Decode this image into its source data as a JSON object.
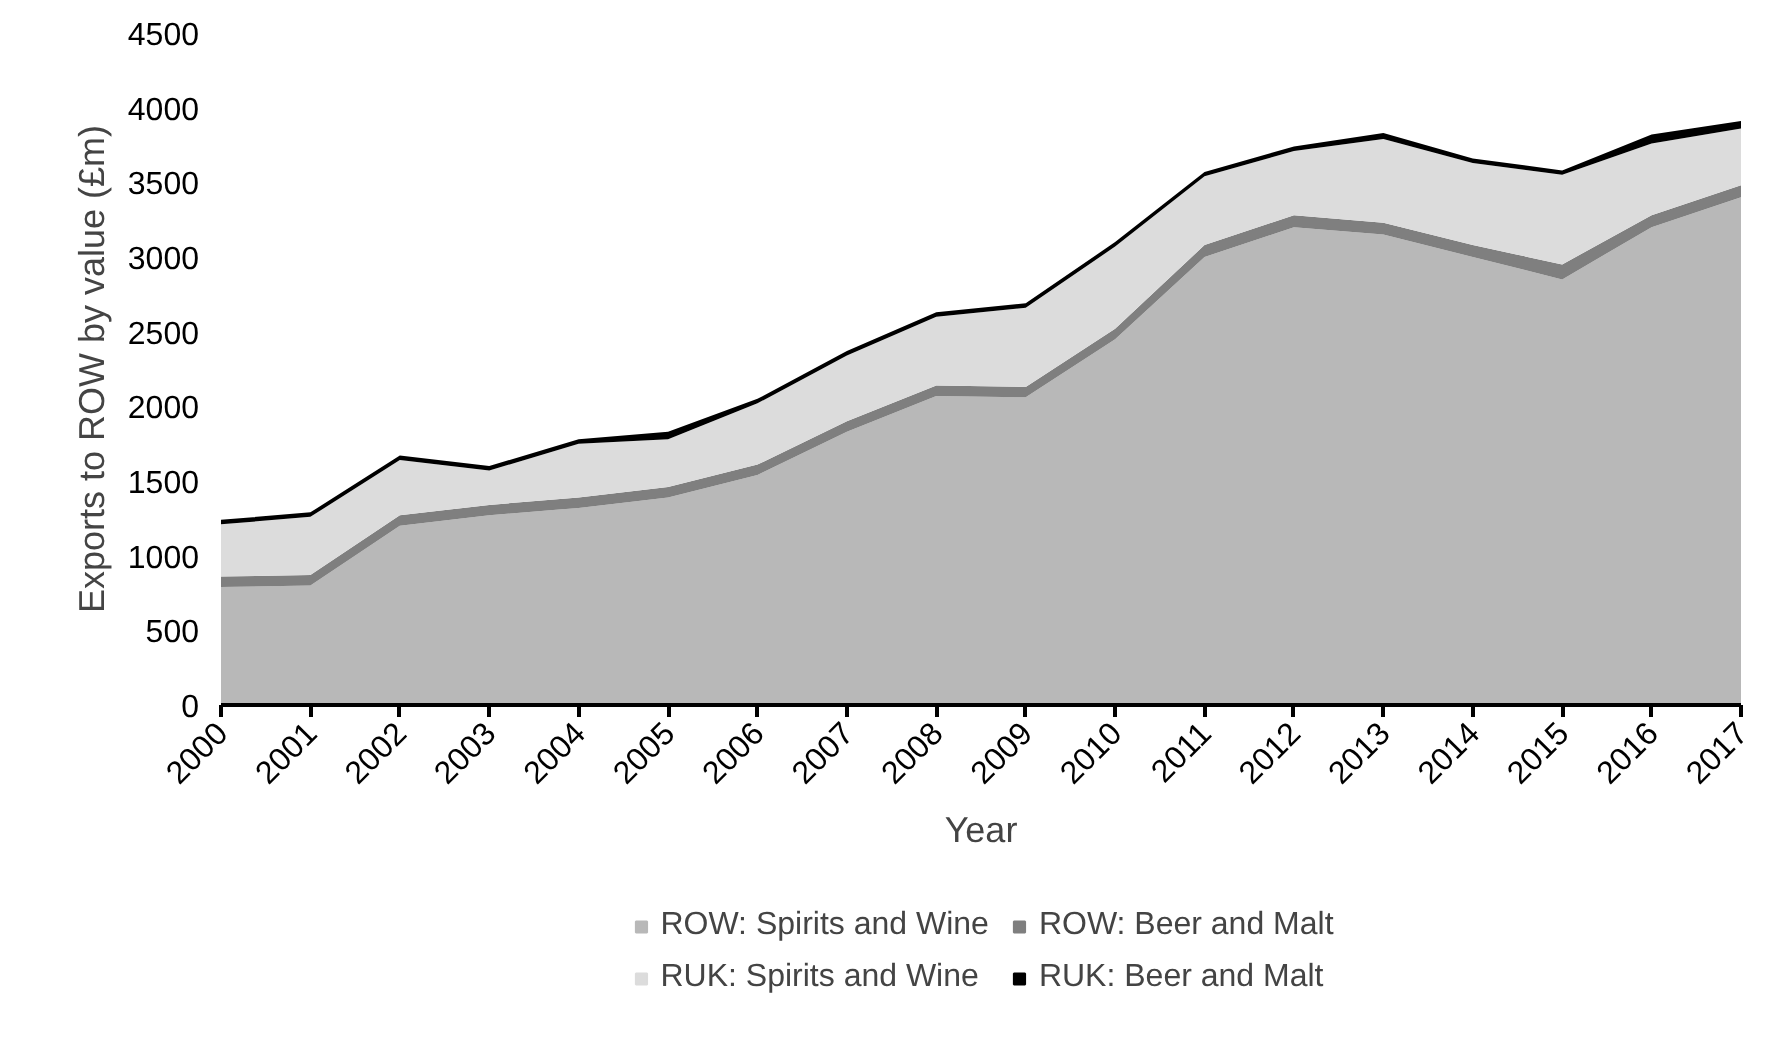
{
  "chart_data": {
    "type": "area",
    "stacked": true,
    "xlabel": "Year",
    "ylabel": "Exports to ROW by value (£m)",
    "categories": [
      "2000",
      "2001",
      "2002",
      "2003",
      "2004",
      "2005",
      "2006",
      "2007",
      "2008",
      "2009",
      "2010",
      "2011",
      "2012",
      "2013",
      "2014",
      "2015",
      "2016",
      "2017"
    ],
    "ylim": [
      0,
      4500
    ],
    "yticks": [
      0,
      500,
      1000,
      1500,
      2000,
      2500,
      3000,
      3500,
      4000,
      4500
    ],
    "grid": false,
    "legend": "bottom",
    "series": [
      {
        "name": "ROW: Spirits and Wine",
        "color": "#b8b8b8",
        "values": [
          790,
          800,
          1200,
          1270,
          1320,
          1390,
          1540,
          1830,
          2070,
          2060,
          2450,
          3000,
          3200,
          3150,
          3000,
          2850,
          3200,
          3400
        ]
      },
      {
        "name": "ROW: Beer and Malt",
        "color": "#7f7f7f",
        "values": [
          70,
          70,
          70,
          70,
          70,
          70,
          70,
          70,
          70,
          70,
          70,
          80,
          80,
          80,
          80,
          100,
          80,
          80
        ]
      },
      {
        "name": "RUK: Spirits and Wine",
        "color": "#dcdcdc",
        "values": [
          350,
          390,
          370,
          230,
          360,
          320,
          410,
          440,
          460,
          530,
          550,
          460,
          430,
          560,
          550,
          600,
          480,
          380
        ]
      },
      {
        "name": "RUK: Beer and Malt",
        "color": "#000000",
        "values": [
          30,
          30,
          30,
          30,
          30,
          50,
          30,
          30,
          30,
          30,
          30,
          30,
          30,
          40,
          30,
          30,
          60,
          50
        ]
      }
    ]
  }
}
